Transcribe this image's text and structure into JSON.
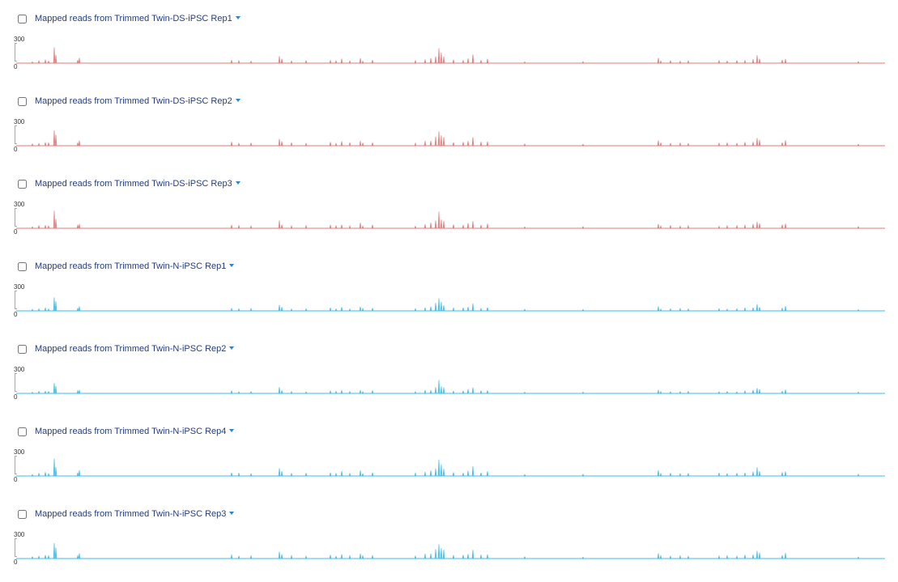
{
  "colors": {
    "ds": "#e07a7a",
    "n": "#3cbce8"
  },
  "tracks": [
    {
      "label": "Mapped reads from Trimmed Twin-DS-iPSC Rep1",
      "ymax": "300",
      "ymin": "0",
      "color": "#e07a7a"
    },
    {
      "label": "Mapped reads from Trimmed Twin-DS-iPSC Rep2",
      "ymax": "300",
      "ymin": "0",
      "color": "#e07a7a"
    },
    {
      "label": "Mapped reads from Trimmed Twin-DS-iPSC Rep3",
      "ymax": "300",
      "ymin": "0",
      "color": "#e07a7a"
    },
    {
      "label": "Mapped reads from Trimmed Twin-N-iPSC Rep1",
      "ymax": "300",
      "ymin": "0",
      "color": "#3cbce8"
    },
    {
      "label": "Mapped reads from Trimmed Twin-N-iPSC Rep2",
      "ymax": "300",
      "ymin": "0",
      "color": "#3cbce8"
    },
    {
      "label": "Mapped reads from Trimmed Twin-N-iPSC Rep4",
      "ymax": "300",
      "ymin": "0",
      "color": "#3cbce8"
    },
    {
      "label": "Mapped reads from Trimmed Twin-N-iPSC Rep3",
      "ymax": "300",
      "ymin": "0",
      "color": "#3cbce8"
    }
  ]
}
